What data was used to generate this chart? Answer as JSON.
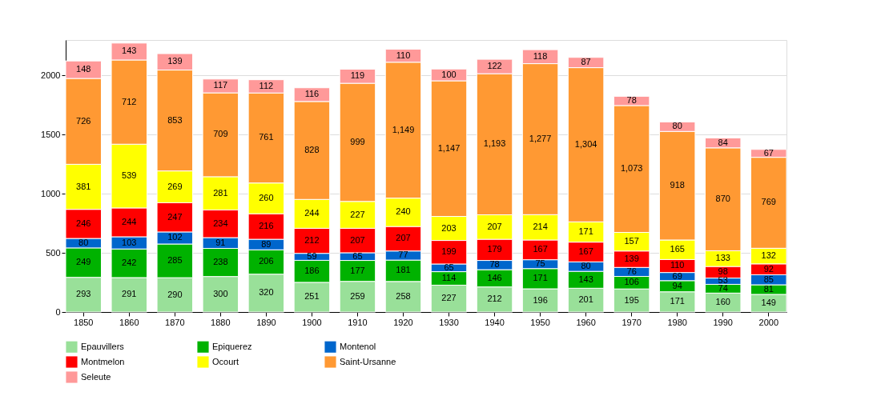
{
  "chart_data": {
    "type": "bar",
    "stacked": true,
    "data_labels": true,
    "grid": "y",
    "legend": "bottom",
    "categories": [
      "1850",
      "1860",
      "1870",
      "1880",
      "1890",
      "1900",
      "1910",
      "1920",
      "1930",
      "1940",
      "1950",
      "1960",
      "1970",
      "1980",
      "1990",
      "2000"
    ],
    "ylim": [
      0,
      2300
    ],
    "yticks": [
      0,
      500,
      1000,
      1500,
      2000
    ],
    "series": [
      {
        "name": "Epauvillers",
        "color": "#99e099",
        "values": [
          293,
          291,
          290,
          300,
          320,
          251,
          259,
          258,
          227,
          212,
          196,
          201,
          195,
          171,
          160,
          149
        ]
      },
      {
        "name": "Epiquerez",
        "color": "#00b200",
        "values": [
          249,
          242,
          285,
          238,
          206,
          186,
          177,
          181,
          114,
          146,
          171,
          143,
          106,
          94,
          74,
          81
        ]
      },
      {
        "name": "Montenol",
        "color": "#0066cc",
        "values": [
          80,
          103,
          102,
          91,
          89,
          59,
          65,
          77,
          65,
          78,
          75,
          80,
          76,
          69,
          53,
          85
        ]
      },
      {
        "name": "Montmelon",
        "color": "#ff0000",
        "values": [
          246,
          244,
          247,
          234,
          216,
          212,
          207,
          207,
          199,
          179,
          167,
          167,
          139,
          110,
          98,
          92
        ]
      },
      {
        "name": "Ocourt",
        "color": "#ffff00",
        "values": [
          381,
          539,
          269,
          281,
          260,
          244,
          227,
          240,
          203,
          207,
          214,
          171,
          157,
          165,
          133,
          132
        ]
      },
      {
        "name": "Saint-Ursanne",
        "color": "#ff9933",
        "values": [
          726,
          712,
          853,
          709,
          761,
          828,
          999,
          1149,
          1147,
          1193,
          1277,
          1304,
          1073,
          918,
          870,
          769
        ],
        "value_labels": [
          "726",
          "712",
          "853",
          "709",
          "761",
          "828",
          "999",
          "1,149",
          "1,147",
          "1,193",
          "1,277",
          "1,304",
          "1,073",
          "918",
          "870",
          "769"
        ]
      },
      {
        "name": "Seleute",
        "color": "#ff9999",
        "values": [
          148,
          143,
          139,
          117,
          112,
          116,
          119,
          110,
          100,
          122,
          118,
          87,
          78,
          80,
          84,
          67
        ]
      }
    ]
  }
}
